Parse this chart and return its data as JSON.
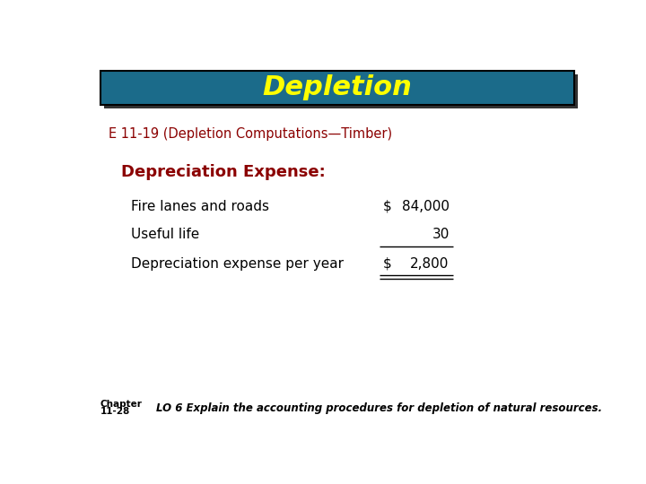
{
  "title": "Depletion",
  "title_color": "#FFFF00",
  "title_bg_color": "#1B6B8A",
  "title_border_color": "#000000",
  "subtitle": "E 11-19 (Depletion Computations—Timber)",
  "subtitle_color": "#8B0000",
  "section_header": "Depreciation Expense:",
  "section_header_color": "#8B0000",
  "rows": [
    {
      "label": "Fire lanes and roads",
      "col1": "$",
      "col2": "84,000"
    },
    {
      "label": "Useful life",
      "col1": "",
      "col2": "30"
    },
    {
      "label": "Depreciation expense per year",
      "col1": "$",
      "col2": "2,800"
    }
  ],
  "label_color": "#000000",
  "value_color": "#000000",
  "chapter_label_line1": "Chapter",
  "chapter_label_line2": "11-28",
  "footer": "LO 6 Explain the accounting procedures for depletion of natural resources.",
  "footer_color": "#000000",
  "bg_color": "#FFFFFF"
}
